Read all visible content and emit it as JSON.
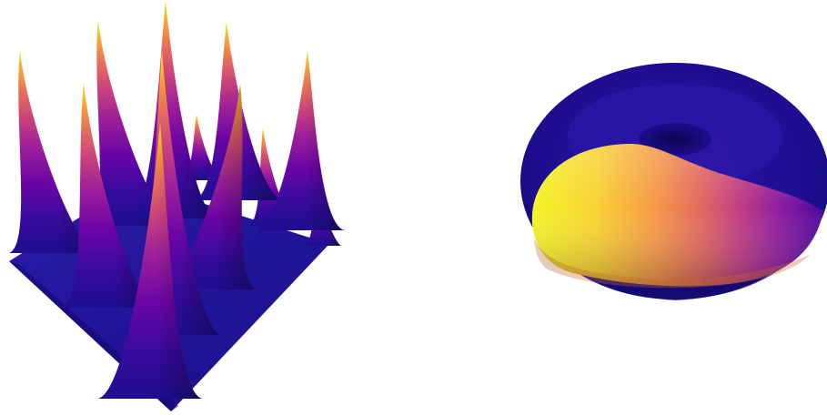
{
  "figure": {
    "colormap": "plasma",
    "colormap_stops": [
      "#0d0887",
      "#3c049b",
      "#6a00a8",
      "#9c179e",
      "#c43e7f",
      "#e16462",
      "#f89540",
      "#fcce25",
      "#f0f921"
    ],
    "panels": [
      {
        "kind": "3d-surface",
        "description_icon": "peaked-surface-icon",
        "peak_count": 12,
        "grid": "4x3"
      },
      {
        "kind": "3d-torus",
        "description_icon": "torus-icon",
        "hot_side": "left",
        "cold_side": "right"
      }
    ]
  }
}
